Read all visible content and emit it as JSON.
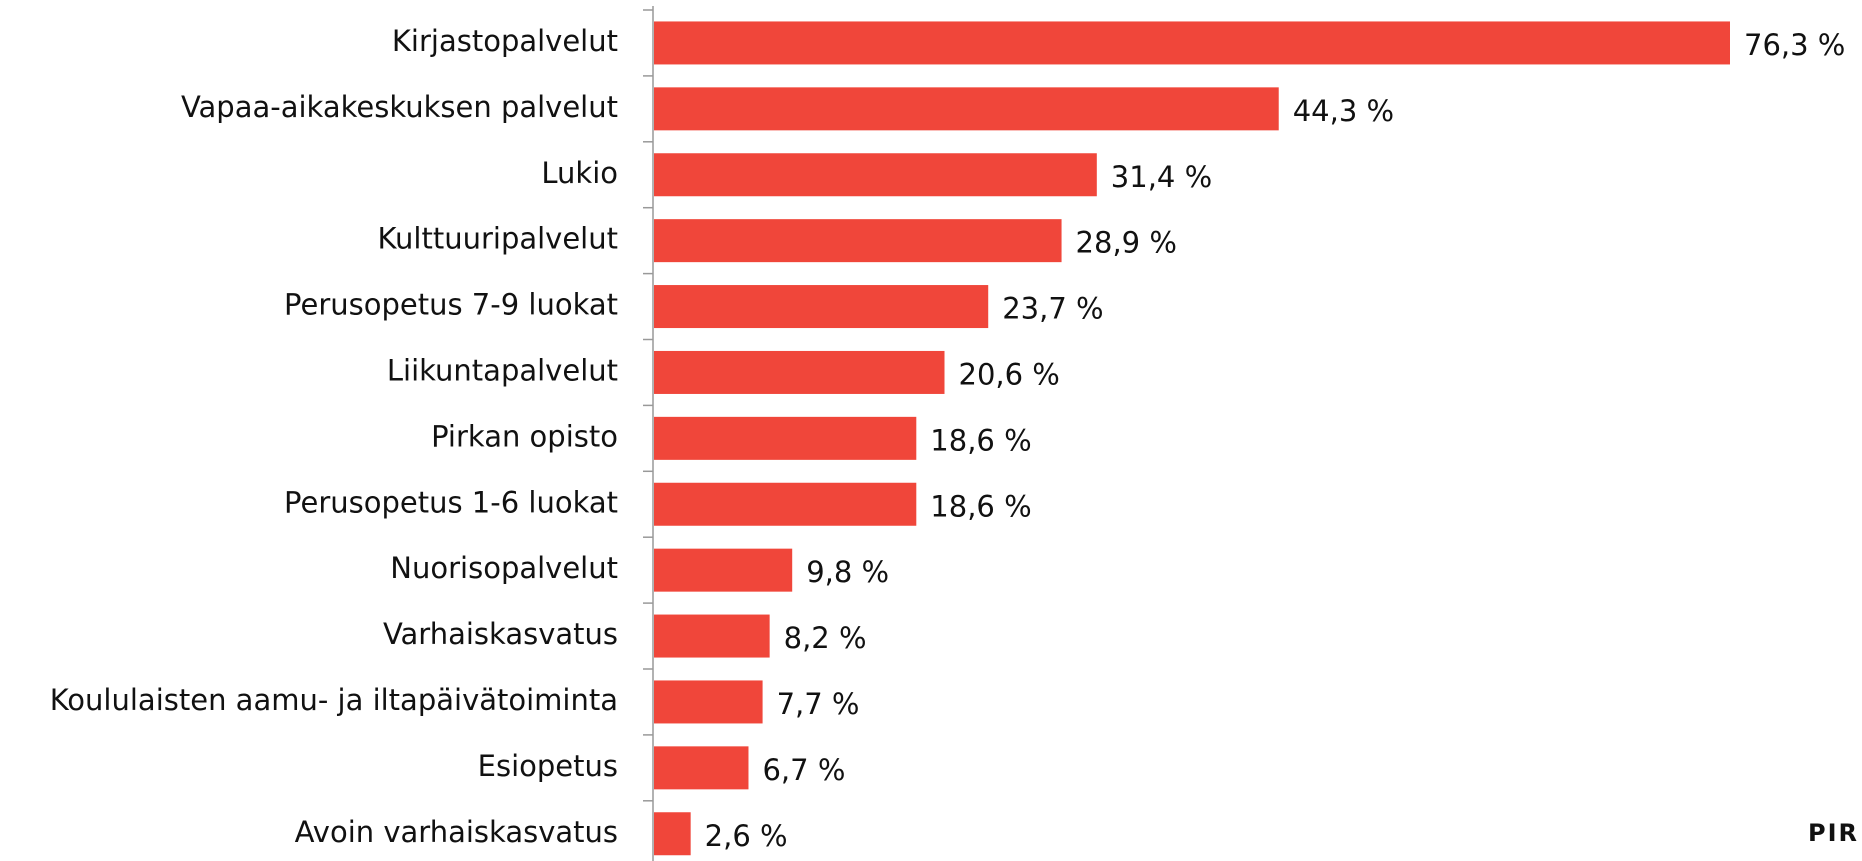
{
  "chart_data": {
    "type": "bar",
    "orientation": "horizontal",
    "categories": [
      "Kirjastopalvelut",
      "Vapaa-aikakeskuksen palvelut",
      "Lukio",
      "Kulttuuripalvelut",
      "Perusopetus 7-9 luokat",
      "Liikuntapalvelut",
      "Pirkan opisto",
      "Perusopetus 1-6 luokat",
      "Nuorisopalvelut",
      "Varhaiskasvatus",
      "Koululaisten aamu- ja iltapäivätoiminta",
      "Esiopetus",
      "Avoin varhaiskasvatus"
    ],
    "values": [
      76.3,
      44.3,
      31.4,
      28.9,
      23.7,
      20.6,
      18.6,
      18.6,
      9.8,
      8.2,
      7.7,
      6.7,
      2.6
    ],
    "value_labels": [
      "76,3 %",
      "44,3 %",
      "31,4 %",
      "28,9 %",
      "23,7 %",
      "20,6 %",
      "18,6 %",
      "18,6 %",
      "9,8 %",
      "8,2 %",
      "7,7 %",
      "6,7 %",
      "2,6 %"
    ],
    "color": "#f0463a",
    "logo": "PIR"
  }
}
